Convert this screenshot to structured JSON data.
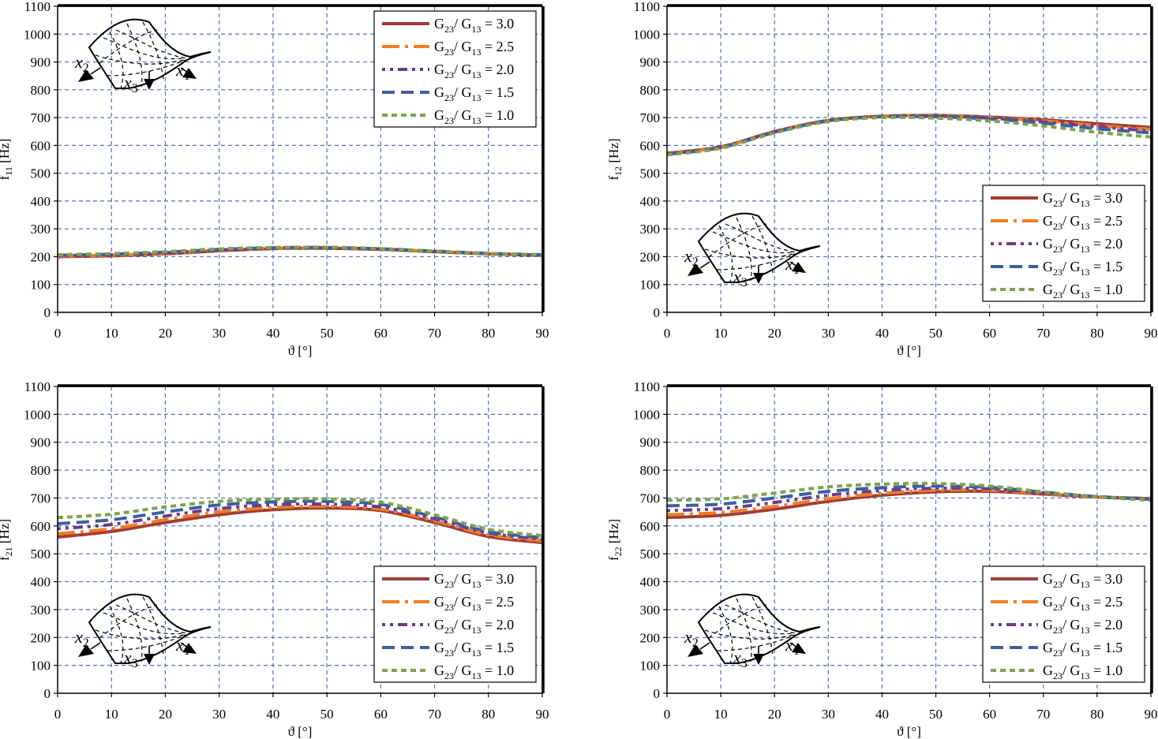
{
  "chart_data": [
    {
      "type": "line",
      "ylabel": {
        "base": "f",
        "sub": "11",
        "unit": " [Hz]"
      },
      "xlabel": "ϑ [°]",
      "xlim": [
        0,
        90
      ],
      "ylim": [
        0,
        1100
      ],
      "xticks": [
        0,
        10,
        20,
        30,
        40,
        50,
        60,
        70,
        80,
        90
      ],
      "yticks": [
        0,
        100,
        200,
        300,
        400,
        500,
        600,
        700,
        800,
        900,
        1000,
        1100
      ],
      "grid": true,
      "legend_position": "top-right",
      "inset_position": "top-left",
      "x": [
        0,
        10,
        20,
        30,
        40,
        50,
        60,
        70,
        80,
        90
      ],
      "series": [
        {
          "name": "G23/ G13 = 3.0",
          "values": [
            200,
            203,
            210,
            221,
            229,
            230,
            226,
            218,
            210,
            205
          ]
        },
        {
          "name": "G23/ G13 = 2.5",
          "values": [
            202,
            205,
            212,
            223,
            230,
            231,
            227,
            219,
            211,
            206
          ]
        },
        {
          "name": "G23/ G13 = 2.0",
          "values": [
            204,
            207,
            214,
            224,
            231,
            232,
            228,
            219,
            211,
            206
          ]
        },
        {
          "name": "G23/ G13 = 1.5",
          "values": [
            205,
            209,
            216,
            226,
            232,
            233,
            228,
            220,
            212,
            207
          ]
        },
        {
          "name": "G23/ G13 = 1.0",
          "values": [
            207,
            211,
            218,
            228,
            233,
            234,
            229,
            220,
            212,
            207
          ]
        }
      ]
    },
    {
      "type": "line",
      "ylabel": {
        "base": "f",
        "sub": "12",
        "unit": " [Hz]"
      },
      "xlabel": "ϑ [°]",
      "xlim": [
        0,
        90
      ],
      "ylim": [
        0,
        1100
      ],
      "xticks": [
        0,
        10,
        20,
        30,
        40,
        50,
        60,
        70,
        80,
        90
      ],
      "yticks": [
        0,
        100,
        200,
        300,
        400,
        500,
        600,
        700,
        800,
        900,
        1000,
        1100
      ],
      "grid": true,
      "legend_position": "bottom-right",
      "inset_position": "bottom-left",
      "x": [
        0,
        10,
        20,
        30,
        40,
        50,
        60,
        70,
        80,
        90
      ],
      "series": [
        {
          "name": "G23/ G13 = 3.0",
          "values": [
            572,
            595,
            650,
            690,
            705,
            708,
            702,
            692,
            678,
            665
          ]
        },
        {
          "name": "G23/ G13 = 2.5",
          "values": [
            570,
            594,
            649,
            690,
            705,
            707,
            700,
            688,
            672,
            658
          ]
        },
        {
          "name": "G23/ G13 = 2.0",
          "values": [
            569,
            593,
            648,
            689,
            704,
            705,
            698,
            684,
            667,
            652
          ]
        },
        {
          "name": "G23/ G13 = 1.5",
          "values": [
            568,
            592,
            647,
            688,
            703,
            703,
            695,
            680,
            660,
            645
          ]
        },
        {
          "name": "G23/ G13 = 1.0",
          "values": [
            566,
            590,
            645,
            686,
            700,
            698,
            688,
            670,
            647,
            630
          ]
        }
      ]
    },
    {
      "type": "line",
      "ylabel": {
        "base": "f",
        "sub": "21",
        "unit": " [Hz]"
      },
      "xlabel": "ϑ [°]",
      "xlim": [
        0,
        90
      ],
      "ylim": [
        0,
        1100
      ],
      "xticks": [
        0,
        10,
        20,
        30,
        40,
        50,
        60,
        70,
        80,
        90
      ],
      "yticks": [
        0,
        100,
        200,
        300,
        400,
        500,
        600,
        700,
        800,
        900,
        1000,
        1100
      ],
      "grid": true,
      "legend_position": "bottom-right",
      "inset_position": "bottom-left",
      "x": [
        0,
        10,
        20,
        30,
        40,
        50,
        60,
        70,
        80,
        90
      ],
      "series": [
        {
          "name": "G23/ G13 = 3.0",
          "values": [
            560,
            580,
            612,
            640,
            658,
            664,
            655,
            612,
            562,
            540
          ]
        },
        {
          "name": "G23/ G13 = 2.5",
          "values": [
            572,
            590,
            622,
            650,
            666,
            670,
            660,
            618,
            568,
            546
          ]
        },
        {
          "name": "G23/ G13 = 2.0",
          "values": [
            590,
            605,
            635,
            662,
            676,
            678,
            668,
            625,
            575,
            552
          ]
        },
        {
          "name": "G23/ G13 = 1.5",
          "values": [
            608,
            622,
            650,
            675,
            686,
            688,
            677,
            632,
            580,
            558
          ]
        },
        {
          "name": "G23/ G13 = 1.0",
          "values": [
            630,
            642,
            668,
            688,
            696,
            697,
            685,
            640,
            588,
            565
          ]
        }
      ]
    },
    {
      "type": "line",
      "ylabel": {
        "base": "f",
        "sub": "22",
        "unit": " [Hz]"
      },
      "xlabel": "ϑ [°]",
      "xlim": [
        0,
        90
      ],
      "ylim": [
        0,
        1100
      ],
      "xticks": [
        0,
        10,
        20,
        30,
        40,
        50,
        60,
        70,
        80,
        90
      ],
      "yticks": [
        0,
        100,
        200,
        300,
        400,
        500,
        600,
        700,
        800,
        900,
        1000,
        1100
      ],
      "grid": true,
      "legend_position": "bottom-right",
      "inset_position": "bottom-left",
      "x": [
        0,
        10,
        20,
        30,
        40,
        50,
        60,
        70,
        80,
        90
      ],
      "series": [
        {
          "name": "G23/ G13 = 3.0",
          "values": [
            630,
            638,
            660,
            688,
            710,
            722,
            724,
            714,
            703,
            698
          ]
        },
        {
          "name": "G23/ G13 = 2.5",
          "values": [
            640,
            648,
            670,
            697,
            717,
            728,
            728,
            716,
            704,
            698
          ]
        },
        {
          "name": "G23/ G13 = 2.0",
          "values": [
            655,
            662,
            684,
            710,
            727,
            735,
            733,
            719,
            705,
            697
          ]
        },
        {
          "name": "G23/ G13 = 1.5",
          "values": [
            672,
            678,
            700,
            724,
            737,
            743,
            738,
            721,
            705,
            695
          ]
        },
        {
          "name": "G23/ G13 = 1.0",
          "values": [
            692,
            697,
            718,
            740,
            750,
            752,
            743,
            722,
            704,
            692
          ]
        }
      ]
    }
  ],
  "series_styles": [
    {
      "color": "#a33b36",
      "dash": "none",
      "width": 4
    },
    {
      "color": "#f07c21",
      "dash": "22 7 4 7",
      "width": 4
    },
    {
      "color": "#6b3b8e",
      "dash": "4 6 4 6 12 6",
      "width": 4
    },
    {
      "color": "#3b5fa3",
      "dash": "16 8",
      "width": 4
    },
    {
      "color": "#7fa447",
      "dash": "7 5",
      "width": 4
    }
  ],
  "grid_color": "#4a74b4",
  "inset_labels": {
    "x1": "x",
    "x1_sub": "1",
    "x2": "x",
    "x2_sub": "2",
    "x3": "x",
    "x3_sub": "3"
  }
}
